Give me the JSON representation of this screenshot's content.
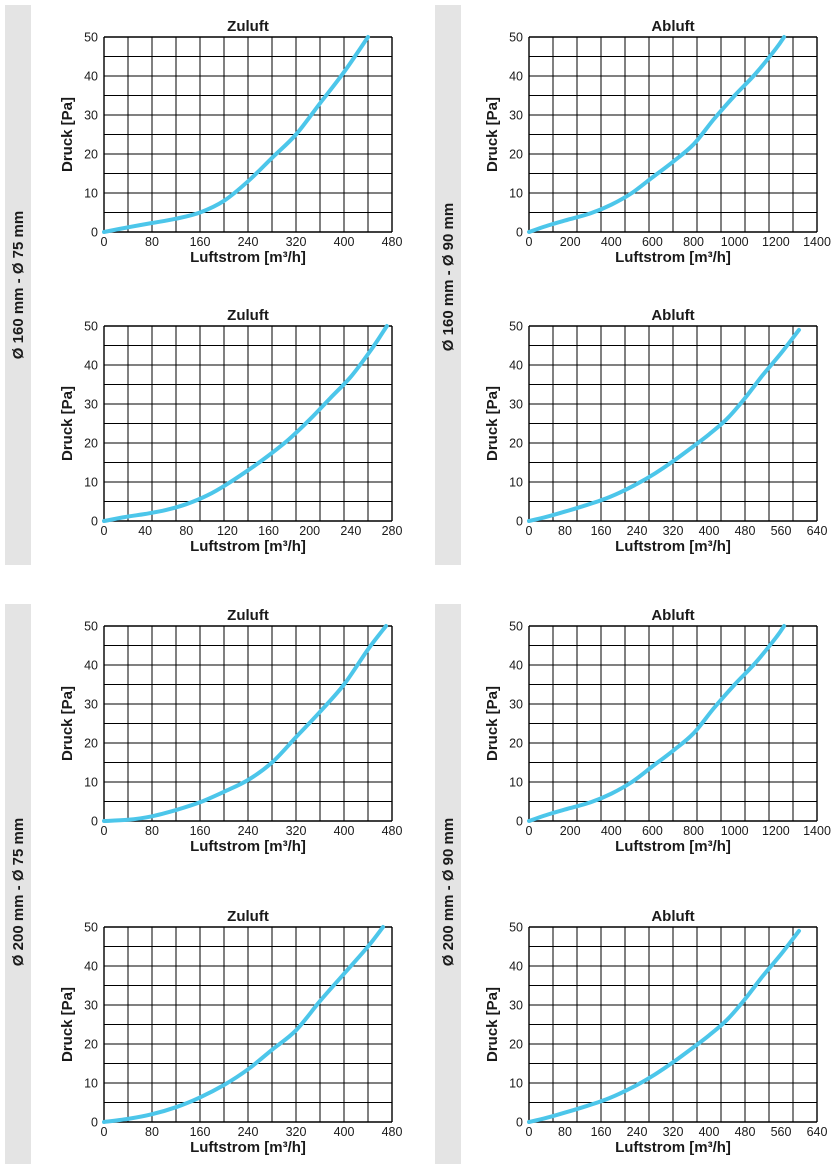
{
  "colors": {
    "curve": "#4cc6ea",
    "grid": "#000000",
    "text": "#1a1a1a",
    "sidebar": "#e4e4e4"
  },
  "side_labels": [
    "Ø 160 mm - Ø 75 mm",
    "Ø 160 mm - Ø 90 mm",
    "Ø 200 mm - Ø 75 mm",
    "Ø 200 mm - Ø 90 mm"
  ],
  "chart_data": [
    {
      "type": "line",
      "title": "Zuluft",
      "xlabel": "Luftstrom [m³/h]",
      "ylabel": "Druck [Pa]",
      "xlim": [
        0,
        480
      ],
      "ylim": [
        0,
        50
      ],
      "xticks": [
        0,
        80,
        160,
        240,
        320,
        400,
        480
      ],
      "yticks": [
        0,
        10,
        20,
        30,
        40,
        50
      ],
      "grid": true,
      "series": [
        {
          "x": [
            0,
            40,
            80,
            120,
            160,
            200,
            240,
            280,
            320,
            360,
            400,
            440
          ],
          "y": [
            0,
            1.2,
            2.3,
            3.4,
            5,
            8,
            13,
            19,
            25,
            33,
            41,
            50
          ]
        }
      ]
    },
    {
      "type": "line",
      "title": "Abluft",
      "xlabel": "Luftstrom [m³/h]",
      "ylabel": "Druck [Pa]",
      "xlim": [
        0,
        1400
      ],
      "ylim": [
        0,
        50
      ],
      "xticks": [
        0,
        200,
        400,
        600,
        800,
        1000,
        1200,
        1400
      ],
      "yticks": [
        0,
        10,
        20,
        30,
        40,
        50
      ],
      "grid": true,
      "series": [
        {
          "x": [
            0,
            100,
            200,
            300,
            400,
            500,
            600,
            700,
            800,
            900,
            1000,
            1100,
            1200,
            1240
          ],
          "y": [
            0,
            1.8,
            3.3,
            4.8,
            7,
            10,
            14,
            18,
            22.5,
            29,
            35,
            40.5,
            47,
            50
          ]
        }
      ]
    },
    {
      "type": "line",
      "title": "Zuluft",
      "xlabel": "Luftstrom [m³/h]",
      "ylabel": "Druck [Pa]",
      "xlim": [
        0,
        280
      ],
      "ylim": [
        0,
        50
      ],
      "xticks": [
        0,
        40,
        80,
        120,
        160,
        200,
        240,
        280
      ],
      "yticks": [
        0,
        10,
        20,
        30,
        40,
        50
      ],
      "grid": true,
      "series": [
        {
          "x": [
            0,
            20,
            40,
            60,
            80,
            100,
            120,
            140,
            160,
            180,
            200,
            220,
            240,
            260,
            275
          ],
          "y": [
            0,
            1,
            1.8,
            2.8,
            4.3,
            6.5,
            9.5,
            13,
            16.8,
            21,
            26,
            31.5,
            37,
            44,
            50
          ]
        }
      ]
    },
    {
      "type": "line",
      "title": "Abluft",
      "xlabel": "Luftstrom [m³/h]",
      "ylabel": "Druck [Pa]",
      "xlim": [
        0,
        640
      ],
      "ylim": [
        0,
        50
      ],
      "xticks": [
        0,
        80,
        160,
        240,
        320,
        400,
        480,
        560,
        640
      ],
      "yticks": [
        0,
        10,
        20,
        30,
        40,
        50
      ],
      "grid": true,
      "series": [
        {
          "x": [
            0,
            40,
            80,
            120,
            160,
            200,
            240,
            280,
            320,
            360,
            400,
            440,
            480,
            520,
            560,
            600
          ],
          "y": [
            0,
            1.1,
            2.4,
            3.8,
            5.3,
            7.2,
            9.5,
            12.2,
            15.3,
            18.7,
            22.2,
            26.2,
            31.5,
            37.5,
            43,
            49
          ]
        }
      ]
    },
    {
      "type": "line",
      "title": "Zuluft",
      "xlabel": "Luftstrom [m³/h]",
      "ylabel": "Druck [Pa]",
      "xlim": [
        0,
        480
      ],
      "ylim": [
        0,
        50
      ],
      "xticks": [
        0,
        80,
        160,
        240,
        320,
        400,
        480
      ],
      "yticks": [
        0,
        10,
        20,
        30,
        40,
        50
      ],
      "grid": true,
      "series": [
        {
          "x": [
            0,
            40,
            80,
            120,
            160,
            200,
            240,
            280,
            320,
            360,
            400,
            440,
            470
          ],
          "y": [
            0,
            0.3,
            1.2,
            2.8,
            4.8,
            7.5,
            10.5,
            15,
            21.5,
            28,
            35,
            44,
            50
          ]
        }
      ]
    },
    {
      "type": "line",
      "title": "Abluft",
      "xlabel": "Luftstrom [m³/h]",
      "ylabel": "Druck [Pa]",
      "xlim": [
        0,
        1400
      ],
      "ylim": [
        0,
        50
      ],
      "xticks": [
        0,
        200,
        400,
        600,
        800,
        1000,
        1200,
        1400
      ],
      "yticks": [
        0,
        10,
        20,
        30,
        40,
        50
      ],
      "grid": true,
      "series": [
        {
          "x": [
            0,
            100,
            200,
            300,
            400,
            500,
            600,
            700,
            800,
            900,
            1000,
            1100,
            1200,
            1240
          ],
          "y": [
            0,
            1.8,
            3.3,
            4.8,
            7,
            10,
            14,
            18,
            22.5,
            29,
            35,
            40.5,
            47,
            50
          ]
        }
      ]
    },
    {
      "type": "line",
      "title": "Zuluft",
      "xlabel": "Luftstrom [m³/h]",
      "ylabel": "Druck [Pa]",
      "xlim": [
        0,
        480
      ],
      "ylim": [
        0,
        50
      ],
      "xticks": [
        0,
        80,
        160,
        240,
        320,
        400,
        480
      ],
      "yticks": [
        0,
        10,
        20,
        30,
        40,
        50
      ],
      "grid": true,
      "series": [
        {
          "x": [
            0,
            40,
            80,
            120,
            160,
            200,
            240,
            280,
            320,
            360,
            400,
            440,
            465
          ],
          "y": [
            0,
            0.8,
            2,
            3.8,
            6.3,
            9.5,
            13.5,
            18.5,
            23.5,
            31,
            38,
            45,
            50
          ]
        }
      ]
    },
    {
      "type": "line",
      "title": "Abluft",
      "xlabel": "Luftstrom [m³/h]",
      "ylabel": "Druck [Pa]",
      "xlim": [
        0,
        640
      ],
      "ylim": [
        0,
        50
      ],
      "xticks": [
        0,
        80,
        160,
        240,
        320,
        400,
        480,
        560,
        640
      ],
      "yticks": [
        0,
        10,
        20,
        30,
        40,
        50
      ],
      "grid": true,
      "series": [
        {
          "x": [
            0,
            40,
            80,
            120,
            160,
            200,
            240,
            280,
            320,
            360,
            400,
            440,
            480,
            520,
            560,
            600
          ],
          "y": [
            0,
            1.1,
            2.4,
            3.8,
            5.3,
            7.2,
            9.5,
            12.2,
            15.3,
            18.7,
            22.2,
            26.2,
            31.5,
            37.5,
            43,
            49
          ]
        }
      ]
    }
  ]
}
